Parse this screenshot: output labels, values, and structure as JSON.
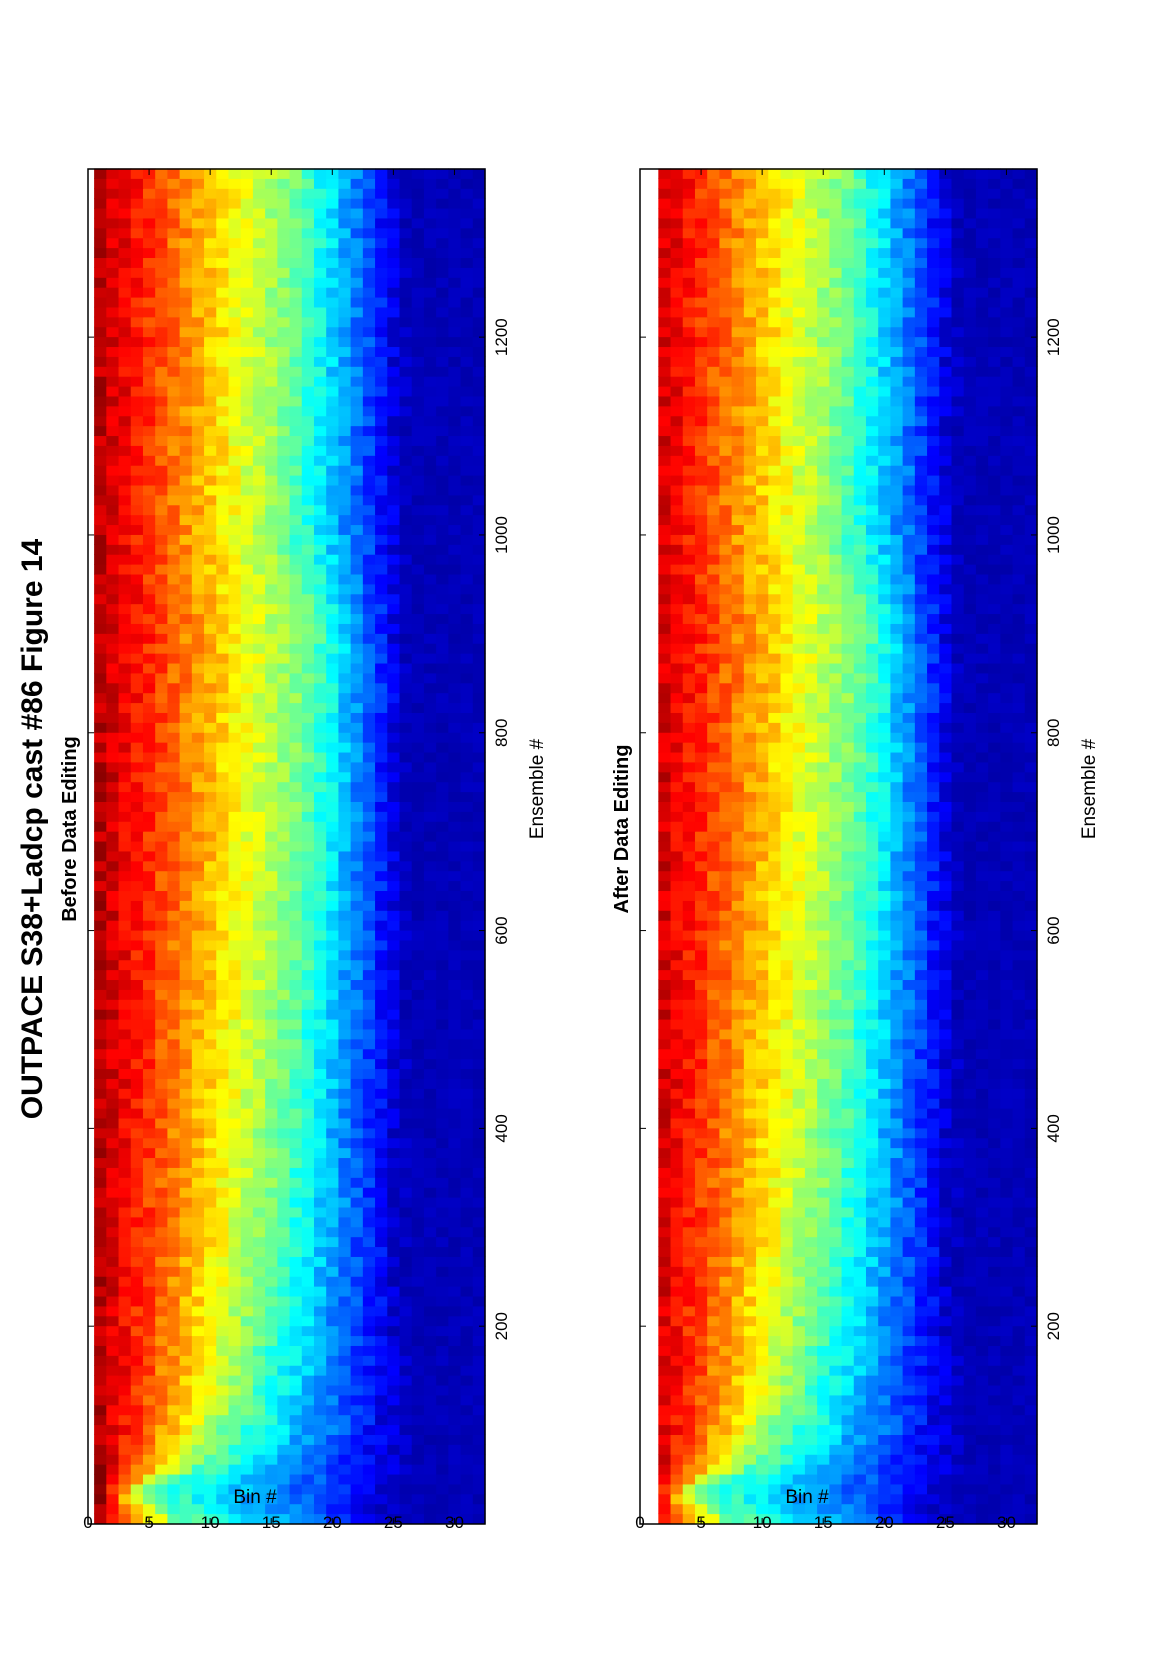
{
  "title": "OUTPACE S38+Ladcp cast #86  Figure 14",
  "chart_data": [
    {
      "type": "heatmap",
      "title": "Before Data Editing",
      "xlabel": "Ensemble #",
      "ylabel": "Bin #",
      "xlim": [
        0,
        1370
      ],
      "ylim": [
        0,
        32.5
      ],
      "x_ticks": [
        "200",
        "400",
        "600",
        "800",
        "1000",
        "1200"
      ],
      "y_ticks": [
        "0",
        "5",
        "10",
        "15",
        "20",
        "25",
        "30"
      ],
      "colormap": "jet",
      "data_bins": [
        1,
        32
      ],
      "row_profile_ensembles": [
        0,
        30,
        60,
        120,
        300,
        600,
        900,
        1000,
        1100,
        1370
      ],
      "row_profile_bin_at_mid_value": [
        8.0,
        4.0,
        9.5,
        13.0,
        15.5,
        17.5,
        18.5,
        16.5,
        17.0,
        17.5
      ]
    },
    {
      "type": "heatmap",
      "title": "After Data Editing",
      "xlabel": "Ensemble #",
      "ylabel": "Bin #",
      "xlim": [
        0,
        1370
      ],
      "ylim": [
        0,
        32.5
      ],
      "x_ticks": [
        "200",
        "400",
        "600",
        "800",
        "1000",
        "1200"
      ],
      "y_ticks": [
        "0",
        "5",
        "10",
        "15",
        "20",
        "25",
        "30"
      ],
      "colormap": "jet",
      "data_bins": [
        2,
        32
      ],
      "row_profile_ensembles": [
        0,
        30,
        60,
        120,
        300,
        600,
        900,
        1000,
        1100,
        1370
      ],
      "row_profile_bin_at_mid_value": [
        8.0,
        4.0,
        9.5,
        13.0,
        15.5,
        17.5,
        18.5,
        16.5,
        17.0,
        17.5
      ]
    }
  ]
}
